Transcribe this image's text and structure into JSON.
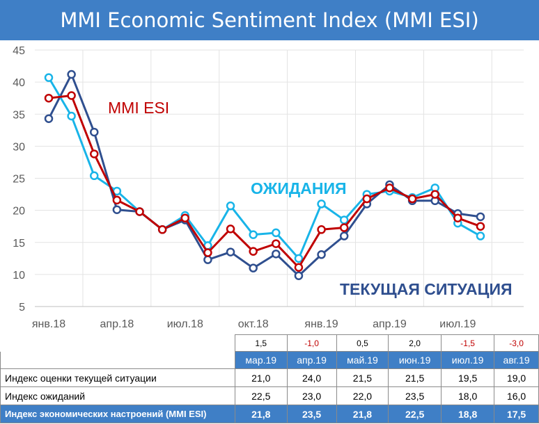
{
  "title": "MMI Economic Sentiment Index (MMI ESI)",
  "colors": {
    "header": "#3f7fc6",
    "esi": "#c00000",
    "expectations": "#18b4e8",
    "current": "#2f4f8f",
    "negative": "#c00000"
  },
  "chart_data": {
    "type": "line",
    "ylim": [
      5,
      45
    ],
    "yticks": [
      "5",
      "10",
      "15",
      "20",
      "25",
      "30",
      "35",
      "40",
      "45"
    ],
    "xticks": [
      "янв.18",
      "апр.18",
      "июл.18",
      "окт.18",
      "янв.19",
      "апр.19",
      "июл.19"
    ],
    "grid": true,
    "x": [
      "янв.18",
      "фев.18",
      "мар.18",
      "апр.18",
      "май.18",
      "июн.18",
      "июл.18",
      "авг.18",
      "сен.18",
      "окт.18",
      "ноя.18",
      "дек.18",
      "янв.19",
      "фев.19",
      "мар.19",
      "апр.19",
      "май.19",
      "июн.19",
      "июл.19",
      "авг.19"
    ],
    "series": [
      {
        "name": "ОЖИДАНИЯ",
        "values": [
          40.7,
          34.7,
          25.4,
          23.0,
          19.8,
          17.0,
          19.2,
          14.5,
          20.7,
          16.2,
          16.5,
          12.5,
          21.0,
          18.5,
          22.5,
          23.0,
          22.0,
          23.5,
          18.0,
          16.0
        ]
      },
      {
        "name": "ТЕКУЩАЯ СИТУАЦИЯ",
        "values": [
          34.3,
          41.2,
          32.2,
          20.1,
          19.8,
          17.0,
          18.5,
          12.3,
          13.5,
          11.0,
          13.2,
          9.8,
          13.1,
          16.0,
          21.0,
          24.0,
          21.5,
          21.5,
          19.5,
          19.0
        ]
      },
      {
        "name": "MMI ESI",
        "values": [
          37.5,
          37.9,
          28.8,
          21.6,
          19.8,
          17.0,
          18.8,
          13.4,
          17.1,
          13.6,
          14.8,
          11.1,
          17.0,
          17.3,
          21.8,
          23.5,
          21.8,
          22.5,
          18.8,
          17.5
        ]
      }
    ]
  },
  "table": {
    "changes": [
      "1,5",
      "-1,0",
      "0,5",
      "2,0",
      "-1,5",
      "-3,0"
    ],
    "months": [
      "мар.19",
      "апр.19",
      "май.19",
      "июн.19",
      "июл.19",
      "авг.19"
    ],
    "rows": [
      {
        "label": "Индекс оценки текущей ситуации",
        "values": [
          "21,0",
          "24,0",
          "21,5",
          "21,5",
          "19,5",
          "19,0"
        ]
      },
      {
        "label": "Индекс ожиданий",
        "values": [
          "22,5",
          "23,0",
          "22,0",
          "23,5",
          "18,0",
          "16,0"
        ]
      },
      {
        "label": "Индекс экономических настроений (MMI ESI)",
        "values": [
          "21,8",
          "23,5",
          "21,8",
          "22,5",
          "18,8",
          "17,5"
        ]
      }
    ]
  }
}
